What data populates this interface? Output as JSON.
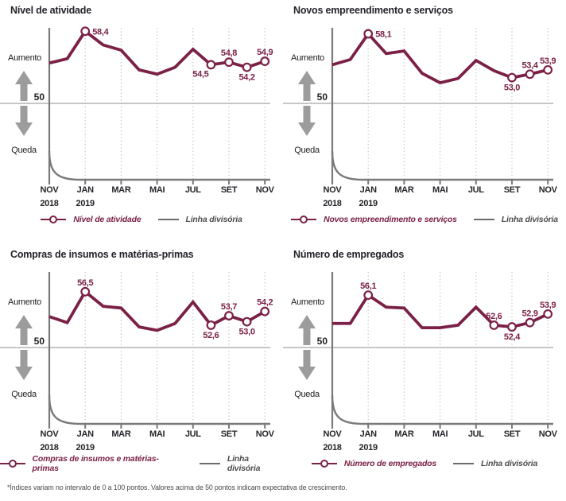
{
  "colors": {
    "series": "#7b2147",
    "axis": "#7a7a7a",
    "baseline_line": "#b3b3b3",
    "gridline": "#c2c2c2",
    "arrow": "#9c9c9c",
    "label_text": "#1f1f1f",
    "tick_text": "#26262b"
  },
  "legend_divider_label": "Linha divisória",
  "footnote": "*Índices variam no intervalo de 0 a 100 pontos. Valores acima de 50 pontos indicam expectativa de crescimento.",
  "axis_labels": {
    "increase": "Aumento",
    "decrease": "Queda",
    "baseline": "50"
  },
  "x_ticks": [
    {
      "index": 0,
      "month": "NOV",
      "year": "2018"
    },
    {
      "index": 2,
      "month": "JAN",
      "year": "2019"
    },
    {
      "index": 4,
      "month": "MAR"
    },
    {
      "index": 6,
      "month": "MAI"
    },
    {
      "index": 8,
      "month": "JUL"
    },
    {
      "index": 10,
      "month": "SET"
    },
    {
      "index": 12,
      "month": "NOV"
    }
  ],
  "chart_data": [
    {
      "type": "line",
      "title": "Nível de atividade",
      "legend_series_label": "Nível de atividade",
      "x_range": "NOV 2018 – NOV 2019 (monthly)",
      "baseline_value": 50,
      "values": [
        54.7,
        55.2,
        58.4,
        56.8,
        56.2,
        53.9,
        53.4,
        54.2,
        56.3,
        54.5,
        54.8,
        54.2,
        54.9
      ],
      "labeled_points": [
        {
          "index": 2,
          "label": "58,4",
          "position": "right"
        },
        {
          "index": 9,
          "label": "54,5",
          "position": "below-left"
        },
        {
          "index": 10,
          "label": "54,8",
          "position": "above"
        },
        {
          "index": 11,
          "label": "54,2",
          "position": "below"
        },
        {
          "index": 12,
          "label": "54,9",
          "position": "above"
        }
      ]
    },
    {
      "type": "line",
      "title": "Novos empreendimento e serviços",
      "legend_series_label": "Novos empreendimento e serviços",
      "x_range": "NOV 2018 – NOV 2019 (monthly)",
      "baseline_value": 50,
      "values": [
        54.5,
        55.1,
        58.1,
        55.8,
        56.1,
        53.5,
        52.4,
        52.9,
        55.0,
        53.8,
        53.0,
        53.4,
        53.9
      ],
      "labeled_points": [
        {
          "index": 2,
          "label": "58,1",
          "position": "right"
        },
        {
          "index": 10,
          "label": "53,0",
          "position": "below"
        },
        {
          "index": 11,
          "label": "53,4",
          "position": "above"
        },
        {
          "index": 12,
          "label": "53,9",
          "position": "above"
        }
      ]
    },
    {
      "type": "line",
      "title": "Compras de insumos e matérias-primas",
      "legend_series_label": "Compras de insumos e matérias-primas",
      "x_range": "NOV 2018 – NOV 2019 (monthly)",
      "baseline_value": 50,
      "values": [
        53.6,
        52.9,
        56.5,
        54.8,
        54.6,
        52.4,
        52.0,
        52.8,
        55.3,
        52.6,
        53.7,
        53.0,
        54.2
      ],
      "labeled_points": [
        {
          "index": 2,
          "label": "56,5",
          "position": "above"
        },
        {
          "index": 9,
          "label": "52,6",
          "position": "below"
        },
        {
          "index": 10,
          "label": "53,7",
          "position": "above"
        },
        {
          "index": 11,
          "label": "53,0",
          "position": "below"
        },
        {
          "index": 12,
          "label": "54,2",
          "position": "above"
        }
      ]
    },
    {
      "type": "line",
      "title": "Número de empregados",
      "legend_series_label": "Número de empregados",
      "x_range": "NOV 2018 – NOV 2019 (monthly)",
      "baseline_value": 50,
      "values": [
        52.8,
        52.8,
        56.1,
        54.7,
        54.6,
        52.3,
        52.3,
        52.6,
        54.7,
        52.6,
        52.4,
        52.9,
        53.9
      ],
      "labeled_points": [
        {
          "index": 2,
          "label": "56,1",
          "position": "above"
        },
        {
          "index": 9,
          "label": "52,6",
          "position": "above"
        },
        {
          "index": 10,
          "label": "52,4",
          "position": "below"
        },
        {
          "index": 11,
          "label": "52,9",
          "position": "above"
        },
        {
          "index": 12,
          "label": "53,9",
          "position": "above"
        }
      ]
    }
  ]
}
